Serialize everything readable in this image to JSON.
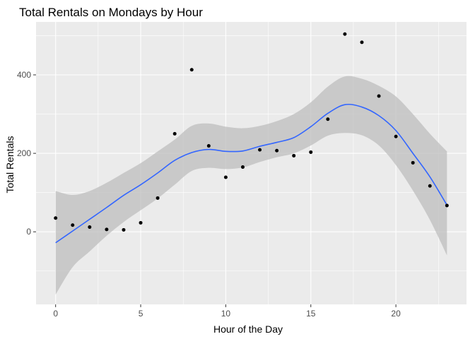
{
  "chart_data": {
    "type": "scatter",
    "title": "Total Rentals on Mondays by Hour",
    "xlabel": "Hour of the Day",
    "ylabel": "Total Rentals",
    "xlim": [
      -1.15,
      24.15
    ],
    "ylim": [
      -185,
      535
    ],
    "x_ticks": [
      0,
      5,
      10,
      15,
      20
    ],
    "y_ticks": [
      0,
      200,
      400
    ],
    "grid": true,
    "legend": "none",
    "colors": {
      "panel": "#EBEBEB",
      "grid_major": "#FFFFFF",
      "points": "#000000",
      "smooth_line": "#3366FF",
      "ribbon": "#BEBEBE"
    },
    "points": [
      {
        "x": 0,
        "y": 35
      },
      {
        "x": 1,
        "y": 17
      },
      {
        "x": 2,
        "y": 12
      },
      {
        "x": 3,
        "y": 6
      },
      {
        "x": 4,
        "y": 5
      },
      {
        "x": 5,
        "y": 23
      },
      {
        "x": 6,
        "y": 86
      },
      {
        "x": 7,
        "y": 250
      },
      {
        "x": 8,
        "y": 413
      },
      {
        "x": 9,
        "y": 219
      },
      {
        "x": 10,
        "y": 139
      },
      {
        "x": 11,
        "y": 165
      },
      {
        "x": 12,
        "y": 209
      },
      {
        "x": 13,
        "y": 207
      },
      {
        "x": 14,
        "y": 194
      },
      {
        "x": 15,
        "y": 203
      },
      {
        "x": 16,
        "y": 287
      },
      {
        "x": 17,
        "y": 504
      },
      {
        "x": 18,
        "y": 483
      },
      {
        "x": 19,
        "y": 346
      },
      {
        "x": 20,
        "y": 243
      },
      {
        "x": 21,
        "y": 176
      },
      {
        "x": 22,
        "y": 117
      },
      {
        "x": 23,
        "y": 67
      }
    ],
    "smooth": {
      "x": [
        0,
        1,
        2,
        3,
        4,
        5,
        6,
        7,
        8,
        9,
        10,
        11,
        12,
        13,
        14,
        15,
        16,
        17,
        18,
        19,
        20,
        21,
        22,
        23
      ],
      "y": [
        -28,
        2,
        32,
        62,
        93,
        120,
        150,
        182,
        202,
        210,
        205,
        206,
        218,
        228,
        240,
        268,
        302,
        324,
        318,
        296,
        258,
        200,
        140,
        68
      ],
      "lower": [
        -160,
        -90,
        -50,
        -10,
        25,
        55,
        85,
        120,
        155,
        163,
        160,
        164,
        178,
        190,
        200,
        220,
        245,
        252,
        246,
        220,
        170,
        105,
        30,
        -60
      ],
      "upper": [
        104,
        94,
        104,
        125,
        150,
        175,
        205,
        235,
        270,
        276,
        268,
        264,
        270,
        282,
        300,
        330,
        370,
        396,
        390,
        372,
        345,
        300,
        250,
        205
      ]
    }
  }
}
